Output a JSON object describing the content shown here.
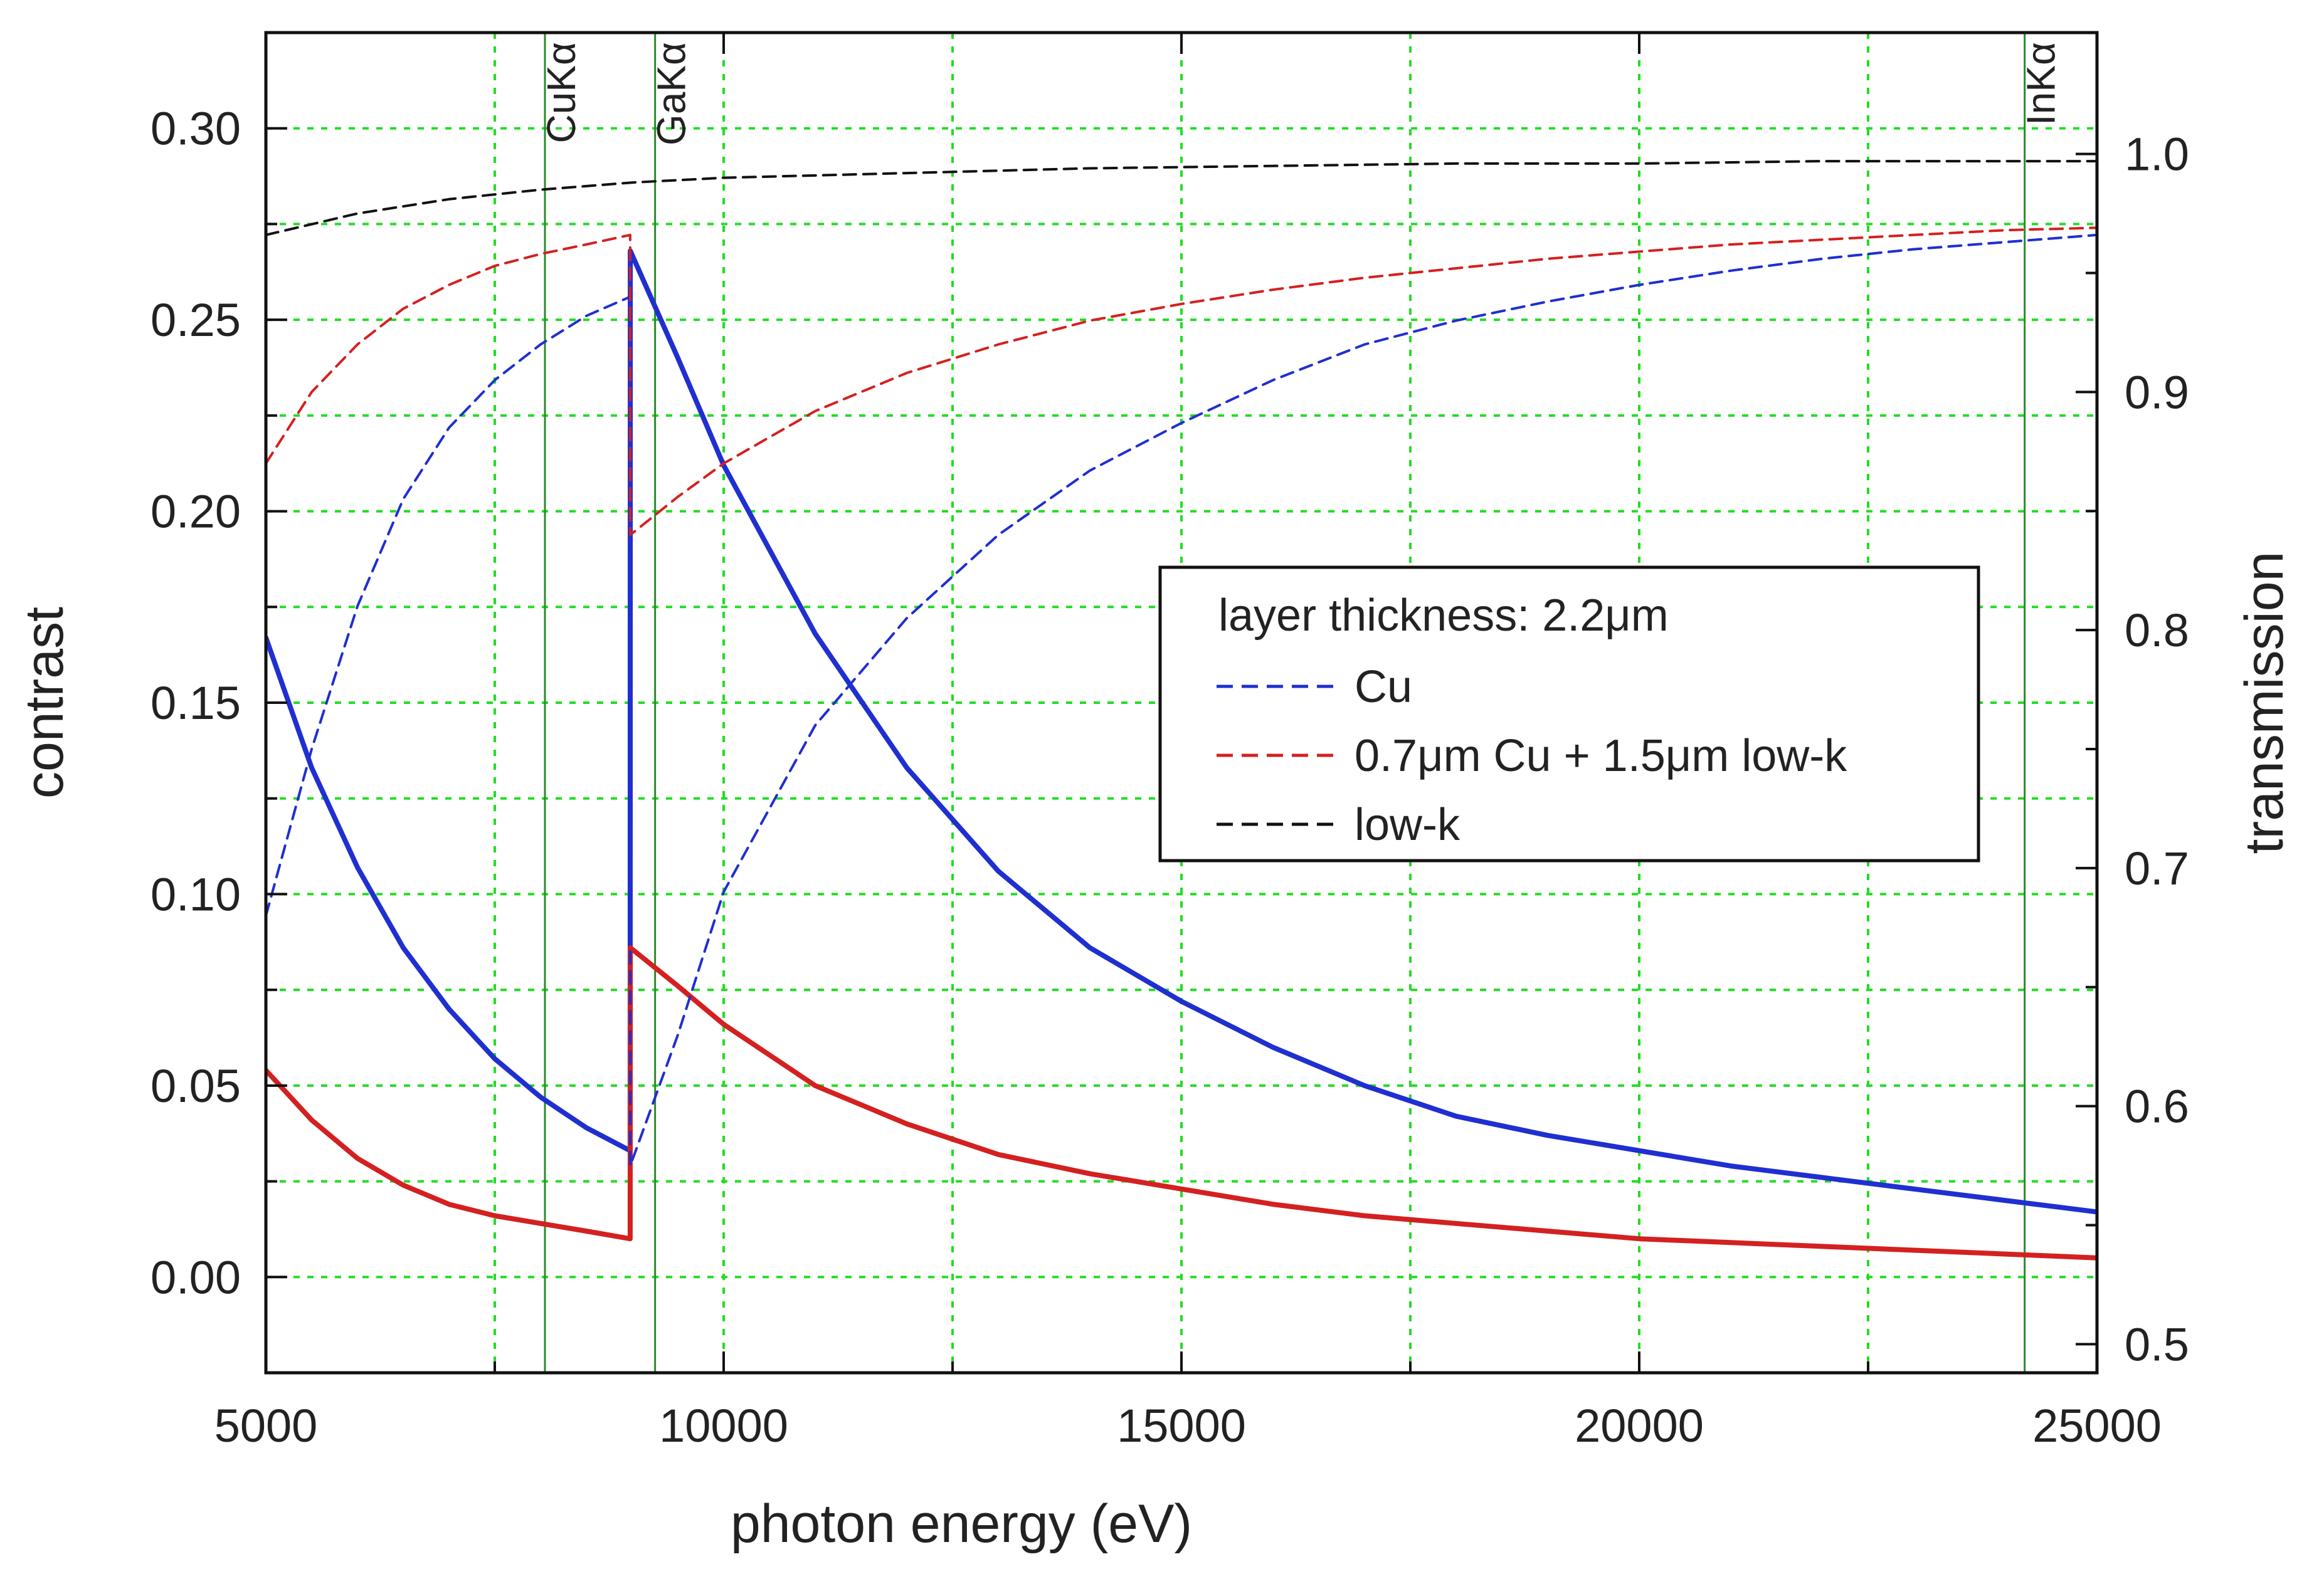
{
  "chart_data": {
    "type": "line",
    "title": "",
    "xlabel": "photon energy (eV)",
    "ylabel_left": "contrast",
    "ylabel_right": "transmission",
    "xlim": [
      5000,
      25000
    ],
    "ylim_left": [
      -0.025,
      0.325
    ],
    "ylim_right": [
      0.488,
      1.051
    ],
    "grid": true,
    "x_ticks": [
      5000,
      10000,
      15000,
      20000,
      25000
    ],
    "x_tick_labels": [
      "5000",
      "10000",
      "15000",
      "20000",
      "25000"
    ],
    "x_minor_ticks": [
      7500,
      12500,
      17500,
      22500
    ],
    "y_left_ticks": [
      0.0,
      0.05,
      0.1,
      0.15,
      0.2,
      0.25,
      0.3
    ],
    "y_left_tick_labels": [
      "0.00",
      "0.05",
      "0.10",
      "0.15",
      "0.20",
      "0.25",
      "0.30"
    ],
    "y_left_minor_ticks": [
      0.025,
      0.075,
      0.125,
      0.175,
      0.225,
      0.275
    ],
    "y_right_ticks": [
      0.5,
      0.6,
      0.7,
      0.8,
      0.9,
      1.0
    ],
    "y_right_tick_labels": [
      "0.5",
      "0.6",
      "0.7",
      "0.8",
      "0.9",
      "1.0"
    ],
    "y_right_minor_ticks": [
      0.55,
      0.65,
      0.75,
      0.85,
      0.95
    ],
    "edges": [
      {
        "label": "CuKα",
        "energy": 8048
      },
      {
        "label": "GaKα",
        "energy": 9251
      },
      {
        "label": "InKα",
        "energy": 24210
      }
    ],
    "legend": {
      "title": "layer thickness: 2.2μm",
      "position": "center-right",
      "entries": [
        {
          "label": "Cu",
          "color": "#1f2fd0",
          "style": "dashed"
        },
        {
          "label": "0.7μm Cu + 1.5μm low-k",
          "color": "#d42020",
          "style": "dashed"
        },
        {
          "label": "low-k",
          "color": "#111111",
          "style": "dashed"
        }
      ]
    },
    "series": [
      {
        "name": "Cu contrast",
        "axis": "left",
        "color": "#1f2fd0",
        "style": "solid",
        "x": [
          5000,
          5500,
          6000,
          6500,
          7000,
          7500,
          8000,
          8500,
          8979,
          8980,
          9500,
          10000,
          11000,
          12000,
          13000,
          14000,
          15000,
          16000,
          17000,
          18000,
          19000,
          20000,
          21000,
          22000,
          23000,
          24000,
          25000
        ],
        "y": [
          0.167,
          0.133,
          0.107,
          0.086,
          0.07,
          0.057,
          0.047,
          0.039,
          0.033,
          0.268,
          0.24,
          0.212,
          0.168,
          0.133,
          0.106,
          0.086,
          0.072,
          0.06,
          0.05,
          0.042,
          0.037,
          0.033,
          0.029,
          0.026,
          0.023,
          0.02,
          0.017
        ]
      },
      {
        "name": "Cu + low-k contrast",
        "axis": "left",
        "color": "#d42020",
        "style": "solid",
        "x": [
          5000,
          5500,
          6000,
          6500,
          7000,
          7500,
          8000,
          8500,
          8979,
          8980,
          9500,
          10000,
          11000,
          12000,
          13000,
          14000,
          15000,
          16000,
          17000,
          18000,
          19000,
          20000,
          21000,
          22000,
          23000,
          24000,
          25000
        ],
        "y": [
          0.054,
          0.041,
          0.031,
          0.024,
          0.019,
          0.016,
          0.014,
          0.012,
          0.01,
          0.086,
          0.076,
          0.066,
          0.05,
          0.04,
          0.032,
          0.027,
          0.023,
          0.019,
          0.016,
          0.014,
          0.012,
          0.01,
          0.009,
          0.008,
          0.007,
          0.006,
          0.005
        ]
      },
      {
        "name": "Cu transmission",
        "axis": "right",
        "color": "#1f2fd0",
        "style": "dashed",
        "x": [
          5000,
          5500,
          6000,
          6500,
          7000,
          7500,
          8000,
          8500,
          8979,
          8980,
          9500,
          10000,
          11000,
          12000,
          13000,
          14000,
          15000,
          16000,
          17000,
          18000,
          19000,
          20000,
          21000,
          22000,
          23000,
          24000,
          25000
        ],
        "y": [
          0.68,
          0.75,
          0.81,
          0.855,
          0.885,
          0.905,
          0.92,
          0.932,
          0.94,
          0.575,
          0.63,
          0.69,
          0.76,
          0.805,
          0.84,
          0.867,
          0.887,
          0.905,
          0.92,
          0.93,
          0.938,
          0.945,
          0.951,
          0.956,
          0.96,
          0.963,
          0.966
        ]
      },
      {
        "name": "Cu + low-k transmission",
        "axis": "right",
        "color": "#d42020",
        "style": "dashed",
        "x": [
          5000,
          5500,
          6000,
          6500,
          7000,
          7500,
          8000,
          8500,
          8979,
          8980,
          9500,
          10000,
          11000,
          12000,
          13000,
          14000,
          15000,
          16000,
          17000,
          18000,
          19000,
          20000,
          21000,
          22000,
          23000,
          24000,
          25000
        ],
        "y": [
          0.87,
          0.9,
          0.92,
          0.935,
          0.945,
          0.953,
          0.958,
          0.962,
          0.966,
          0.84,
          0.856,
          0.87,
          0.892,
          0.908,
          0.92,
          0.93,
          0.937,
          0.943,
          0.948,
          0.952,
          0.956,
          0.959,
          0.962,
          0.964,
          0.966,
          0.968,
          0.969
        ]
      },
      {
        "name": "low-k transmission",
        "axis": "right",
        "color": "#111111",
        "style": "dashed",
        "x": [
          5000,
          6000,
          7000,
          8000,
          9000,
          10000,
          12000,
          14000,
          16000,
          18000,
          20000,
          22000,
          24000,
          25000
        ],
        "y": [
          0.966,
          0.975,
          0.981,
          0.985,
          0.988,
          0.99,
          0.992,
          0.994,
          0.995,
          0.996,
          0.996,
          0.997,
          0.997,
          0.997
        ]
      }
    ]
  }
}
